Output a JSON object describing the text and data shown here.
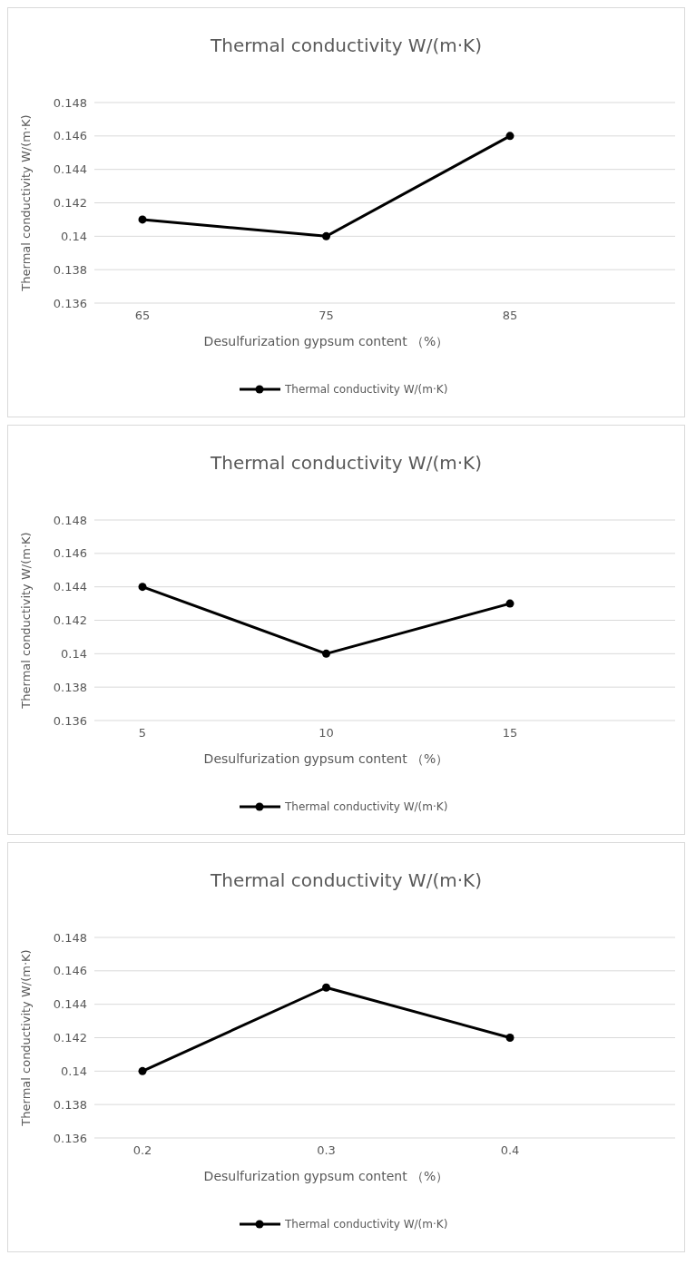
{
  "chart_data": [
    {
      "type": "line",
      "title": "Thermal conductivity W/(m·K)",
      "xlabel": "Desulfurization gypsum content （%）",
      "ylabel": "Thermal conductivity W/(m·K)",
      "categories": [
        "65",
        "75",
        "85"
      ],
      "series": [
        {
          "name": "Thermal conductivity W/(m·K)",
          "color": "#000000",
          "values": [
            0.141,
            0.14,
            0.146
          ]
        }
      ],
      "ylim": [
        0.136,
        0.148
      ],
      "yticks": [
        0.136,
        0.138,
        0.14,
        0.142,
        0.144,
        0.146,
        0.148
      ],
      "grid": "y",
      "legend": "bottom",
      "marker": "circle"
    },
    {
      "type": "line",
      "title": "Thermal conductivity W/(m·K)",
      "xlabel": "Desulfurization gypsum content （%）",
      "ylabel": "Thermal conductivity W/(m·K)",
      "categories": [
        "5",
        "10",
        "15"
      ],
      "series": [
        {
          "name": "Thermal conductivity W/(m·K)",
          "color": "#000000",
          "values": [
            0.144,
            0.14,
            0.143
          ]
        }
      ],
      "ylim": [
        0.136,
        0.148
      ],
      "yticks": [
        0.136,
        0.138,
        0.14,
        0.142,
        0.144,
        0.146,
        0.148
      ],
      "grid": "y",
      "legend": "bottom",
      "marker": "circle"
    },
    {
      "type": "line",
      "title": "Thermal conductivity W/(m·K)",
      "xlabel": "Desulfurization gypsum content （%）",
      "ylabel": "Thermal conductivity W/(m·K)",
      "categories": [
        "0.2",
        "0.3",
        "0.4"
      ],
      "series": [
        {
          "name": "Thermal conductivity W/(m·K)",
          "color": "#000000",
          "values": [
            0.14,
            0.145,
            0.142
          ]
        }
      ],
      "ylim": [
        0.136,
        0.148
      ],
      "yticks": [
        0.136,
        0.138,
        0.14,
        0.142,
        0.144,
        0.146,
        0.148
      ],
      "grid": "y",
      "legend": "bottom",
      "marker": "circle"
    }
  ]
}
